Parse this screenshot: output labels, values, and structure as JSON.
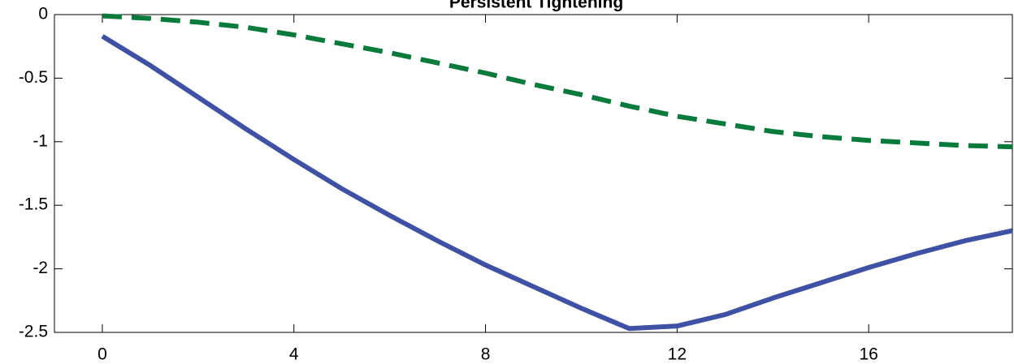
{
  "chart_data": {
    "type": "line",
    "title": "Persistent Tightening",
    "x": [
      0,
      1,
      2,
      3,
      4,
      5,
      6,
      7,
      8,
      9,
      10,
      11,
      12,
      13,
      14,
      15,
      16,
      17,
      18,
      19
    ],
    "series": [
      {
        "color": "#3f51a5",
        "style": "solid",
        "values": [
          -0.17,
          -0.4,
          -0.65,
          -0.9,
          -1.14,
          -1.37,
          -1.58,
          -1.78,
          -1.97,
          -2.14,
          -2.31,
          -2.47,
          -2.45,
          -2.36,
          -2.23,
          -2.11,
          -1.99,
          -1.88,
          -1.78,
          -1.7
        ]
      },
      {
        "color": "#087a3c",
        "style": "dashed",
        "values": [
          -0.01,
          -0.03,
          -0.06,
          -0.1,
          -0.16,
          -0.23,
          -0.3,
          -0.38,
          -0.46,
          -0.55,
          -0.63,
          -0.72,
          -0.8,
          -0.86,
          -0.92,
          -0.96,
          -0.99,
          -1.01,
          -1.03,
          -1.04
        ]
      }
    ],
    "xlim": [
      -1,
      19
    ],
    "xticks": [
      0,
      4,
      8,
      12,
      16
    ],
    "ylim": [
      -2.5,
      0
    ],
    "yticks": [
      -2.5,
      -2,
      -1.5,
      -1,
      -0.5,
      0
    ]
  }
}
